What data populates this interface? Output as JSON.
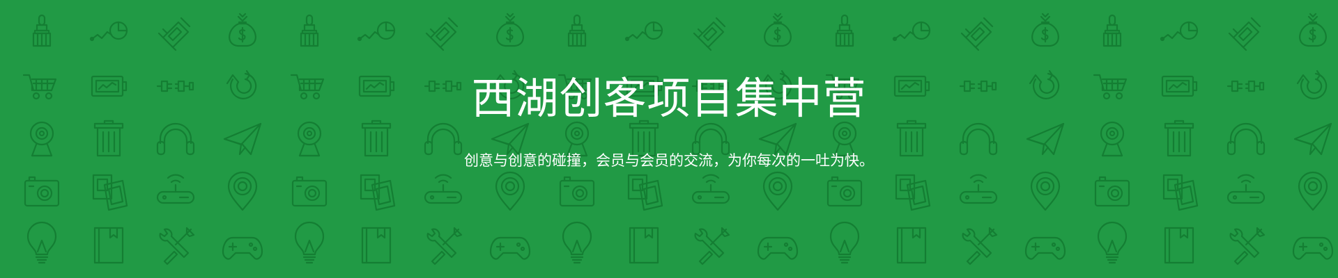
{
  "banner": {
    "title": "西湖创客项目集中营",
    "subtitle": "创意与创意的碰撞，会员与会员的交流，为你每次的一吐为快。",
    "colors": {
      "background": "#219a45",
      "pattern_stroke": "#127a30",
      "text": "#ffffff"
    },
    "icon_rows": [
      [
        "brush-icon",
        "pie-chart-icon",
        "circuit-chip-icon",
        "money-bag-icon"
      ],
      [
        "shopping-cart-icon",
        "battery-icon",
        "plug-icon",
        "refresh-arrow-icon"
      ],
      [
        "webcam-icon",
        "trash-can-icon",
        "headphones-icon",
        "paper-plane-icon"
      ],
      [
        "camera-icon",
        "photos-icon",
        "router-icon",
        "location-pin-icon"
      ],
      [
        "light-bulb-icon",
        "book-icon",
        "tools-icon",
        "gamepad-icon"
      ]
    ]
  }
}
